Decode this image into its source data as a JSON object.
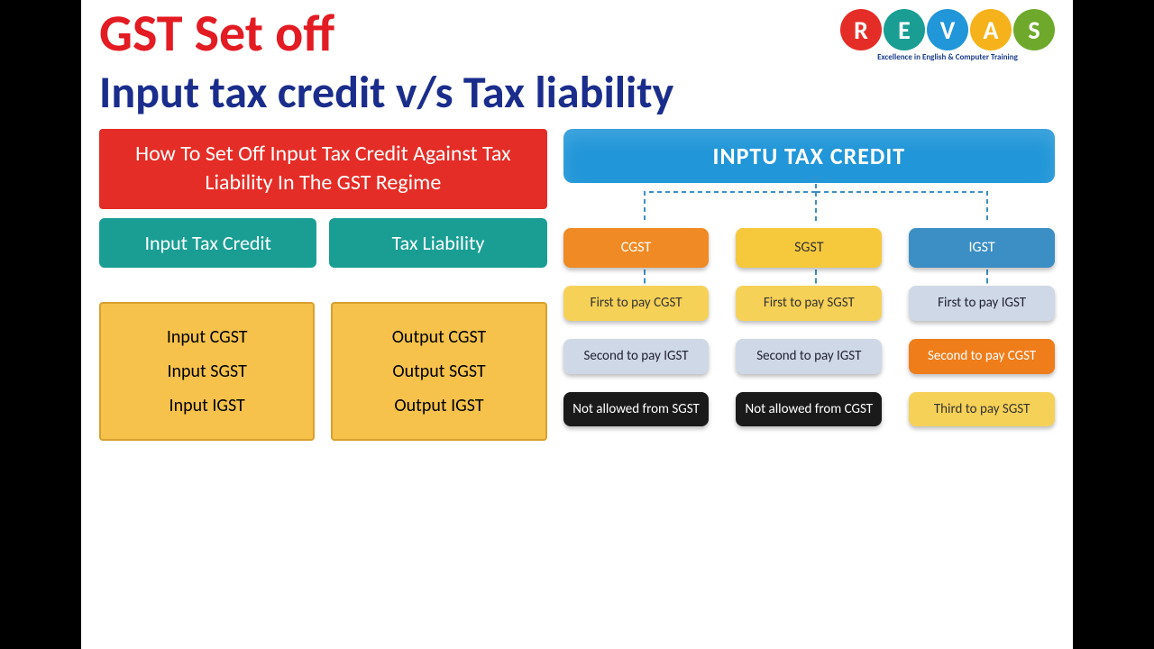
{
  "logo": {
    "letters": [
      "R",
      "E",
      "V",
      "A",
      "S"
    ],
    "colors": [
      "#e52d27",
      "#1a9e94",
      "#2196d8",
      "#f6b21a",
      "#6fa92c"
    ],
    "tagline": "Excellence in English & Computer Training"
  },
  "title1": "GST Set off",
  "title2": "Input tax credit v/s Tax liability",
  "left": {
    "redbox": "How To Set Off Input Tax Credit Against Tax Liability In The GST Regime",
    "teal": [
      "Input Tax Credit",
      "Tax Liability"
    ],
    "yellow_left": [
      "Input CGST",
      "Input SGST",
      "Input IGST"
    ],
    "yellow_right": [
      "Output CGST",
      "Output SGST",
      "Output IGST"
    ]
  },
  "right": {
    "header": "INPTU TAX CREDIT",
    "columns": [
      {
        "head": {
          "label": "CGST",
          "cls": "n-orange"
        },
        "rows": [
          {
            "label": "First to pay CGST",
            "cls": "n-yellow2"
          },
          {
            "label": "Second to pay IGST",
            "cls": "n-steel"
          },
          {
            "label": "Not allowed from SGST",
            "cls": "n-black"
          }
        ]
      },
      {
        "head": {
          "label": "SGST",
          "cls": "n-yellow"
        },
        "rows": [
          {
            "label": "First to pay SGST",
            "cls": "n-yellow2"
          },
          {
            "label": "Second to pay IGST",
            "cls": "n-steel"
          },
          {
            "label": "Not allowed from CGST",
            "cls": "n-black"
          }
        ]
      },
      {
        "head": {
          "label": "IGST",
          "cls": "n-blue"
        },
        "rows": [
          {
            "label": "First to pay IGST",
            "cls": "n-steel"
          },
          {
            "label": "Second to pay CGST",
            "cls": "n-orange2"
          },
          {
            "label": "Third to pay SGST",
            "cls": "n-yellow2"
          }
        ]
      }
    ]
  }
}
